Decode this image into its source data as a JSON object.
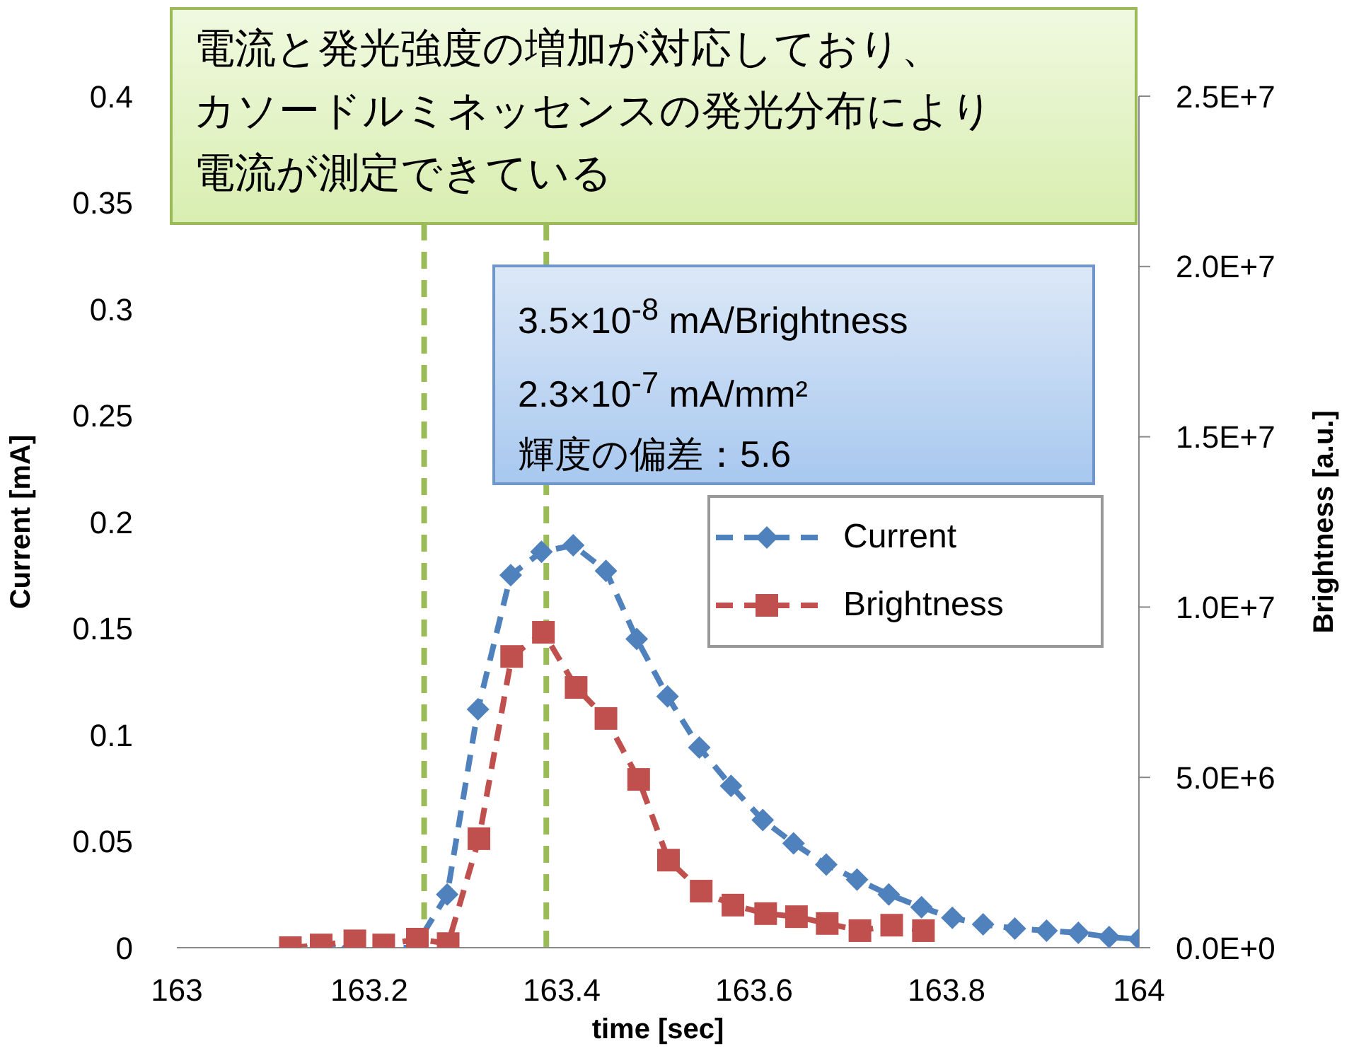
{
  "chart_data": {
    "type": "line",
    "xlabel": "time [sec]",
    "ylabel": "Current [mA]",
    "y2label": "Brightness [a.u.]",
    "xlim": [
      163,
      164
    ],
    "xticks": [
      163,
      163.2,
      163.4,
      163.6,
      163.8,
      164
    ],
    "ylim": [
      0,
      0.4
    ],
    "yticks": [
      0,
      0.05,
      0.1,
      0.15,
      0.2,
      0.25,
      0.3,
      0.35,
      0.4
    ],
    "y2lim": [
      0,
      25000000
    ],
    "y2ticks": [
      {
        "value": 0,
        "label": "0.0E+0"
      },
      {
        "value": 5000000,
        "label": "5.0E+6"
      },
      {
        "value": 10000000,
        "label": "1.0E+7"
      },
      {
        "value": 15000000,
        "label": "1.5E+7"
      },
      {
        "value": 20000000,
        "label": "2.0E+7"
      },
      {
        "value": 25000000,
        "label": "2.5E+7"
      }
    ],
    "grid": false,
    "legend": "right",
    "line_style": "dashed",
    "series": [
      {
        "name": "Current",
        "color": "#4f81bd",
        "marker": "diamond",
        "x": [
          163.118,
          163.15,
          163.182,
          163.215,
          163.247,
          163.281,
          163.313,
          163.347,
          163.379,
          163.412,
          163.446,
          163.478,
          163.51,
          163.543,
          163.576,
          163.609,
          163.641,
          163.675,
          163.707,
          163.74,
          163.774,
          163.806,
          163.838,
          163.871,
          163.904,
          163.937,
          163.969,
          164.0
        ],
        "values": [
          0,
          0,
          0,
          0,
          0,
          0.025,
          0.112,
          0.175,
          0.186,
          0.189,
          0.177,
          0.145,
          0.118,
          0.094,
          0.076,
          0.06,
          0.049,
          0.039,
          0.032,
          0.025,
          0.019,
          0.014,
          0.011,
          0.009,
          0.008,
          0.007,
          0.005,
          0.004
        ]
      },
      {
        "name": "Brightness",
        "color": "#c0504d",
        "marker": "square",
        "axis": "y2",
        "x": [
          163.118,
          163.15,
          163.185,
          163.215,
          163.25,
          163.282,
          163.314,
          163.348,
          163.381,
          163.415,
          163.446,
          163.48,
          163.511,
          163.545,
          163.578,
          163.612,
          163.644,
          163.676,
          163.71,
          163.743,
          163.776
        ],
        "values": [
          0,
          80000,
          200000,
          80000,
          250000,
          120000,
          3200000,
          8550000,
          9260000,
          7640000,
          6730000,
          4940000,
          2570000,
          1660000,
          1250000,
          1000000,
          910000,
          710000,
          500000,
          660000,
          500000
        ]
      }
    ],
    "ref_lines": [
      {
        "axis": "x",
        "value": 163.257,
        "color": "#9bbb59",
        "line_style": "dashed"
      },
      {
        "axis": "x",
        "value": 163.384,
        "color": "#9bbb59",
        "line_style": "dashed"
      }
    ],
    "annotations": [
      "電流と発光強度の増加が対応しており、",
      "カソードルミネッセンスの発光分布により",
      "電流が測定できている",
      "3.5×10$^{-8}$ mA/Brightness",
      "2.3×10$^{-7}$ mA/mm²",
      "輝度の偏差：5.6"
    ]
  }
}
